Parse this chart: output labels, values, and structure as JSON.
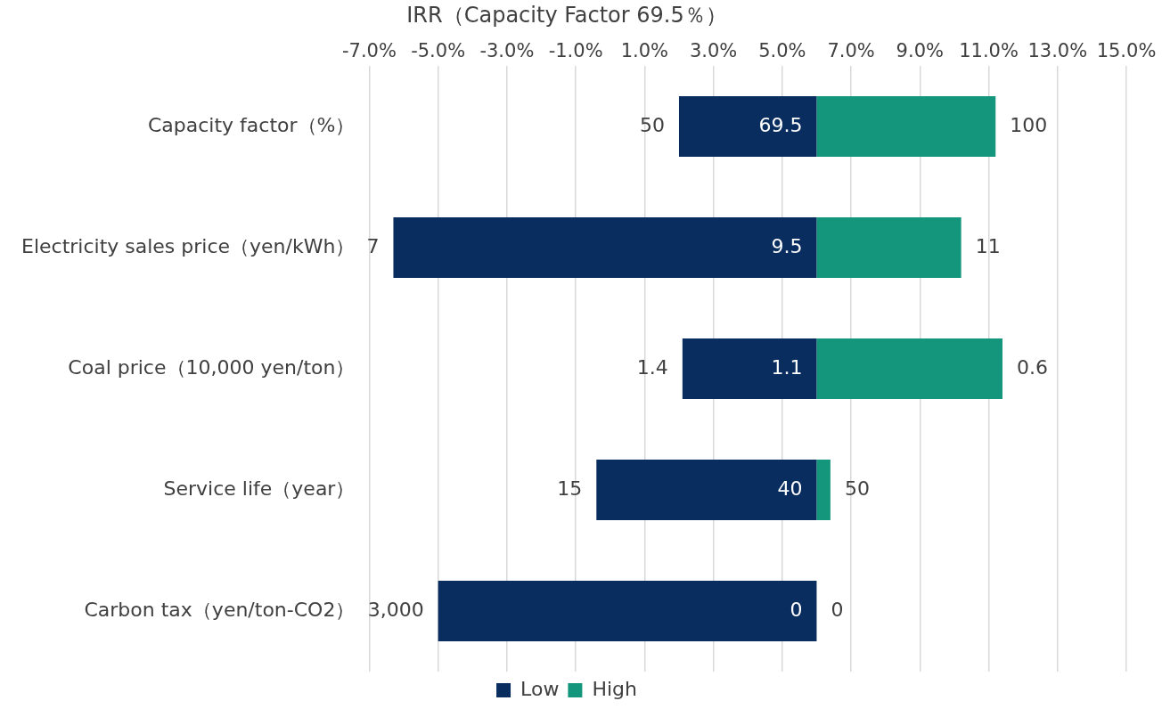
{
  "chart_data": {
    "type": "bar",
    "orientation": "horizontal",
    "title": "IRR（Capacity Factor 69.5％）",
    "categories": [
      "Capacity factor（%）",
      "Electricity sales price（yen/kWh）",
      "Coal price（10,000 yen/ton）",
      "Service life（year）",
      "Carbon tax（yen/ton-CO2）"
    ],
    "series": [
      {
        "name": "Low",
        "color": "#082d5e",
        "base": [
          6.0,
          6.0,
          6.0,
          6.0,
          6.0
        ],
        "values": [
          -4.0,
          -12.3,
          -3.9,
          -6.4,
          -11.0
        ]
      },
      {
        "name": "High",
        "color": "#14967c",
        "base": [
          6.0,
          6.0,
          6.0,
          6.0,
          null
        ],
        "values": [
          5.2,
          4.2,
          5.4,
          0.4,
          null
        ]
      }
    ],
    "xlim": [
      -7,
      15
    ],
    "xticks": [
      {
        "value": -7,
        "label": "-7.0%"
      },
      {
        "value": -5,
        "label": "-5.0%"
      },
      {
        "value": -3,
        "label": "-3.0%"
      },
      {
        "value": -1,
        "label": "-1.0%"
      },
      {
        "value": 1,
        "label": "1.0%"
      },
      {
        "value": 3,
        "label": "3.0%"
      },
      {
        "value": 5,
        "label": "5.0%"
      },
      {
        "value": 7,
        "label": "7.0%"
      },
      {
        "value": 9,
        "label": "9.0%"
      },
      {
        "value": 11,
        "label": "11.0%"
      },
      {
        "value": 13,
        "label": "13.0%"
      },
      {
        "value": 15,
        "label": "15.0%"
      }
    ],
    "grid": "x",
    "legend": "bottom",
    "annotations": [
      "50",
      "69.5",
      "100",
      "7",
      "9.5",
      "11",
      "1.4",
      "1.1",
      "0.6",
      "15",
      "40",
      "50",
      "3,000",
      "0",
      "0"
    ]
  }
}
